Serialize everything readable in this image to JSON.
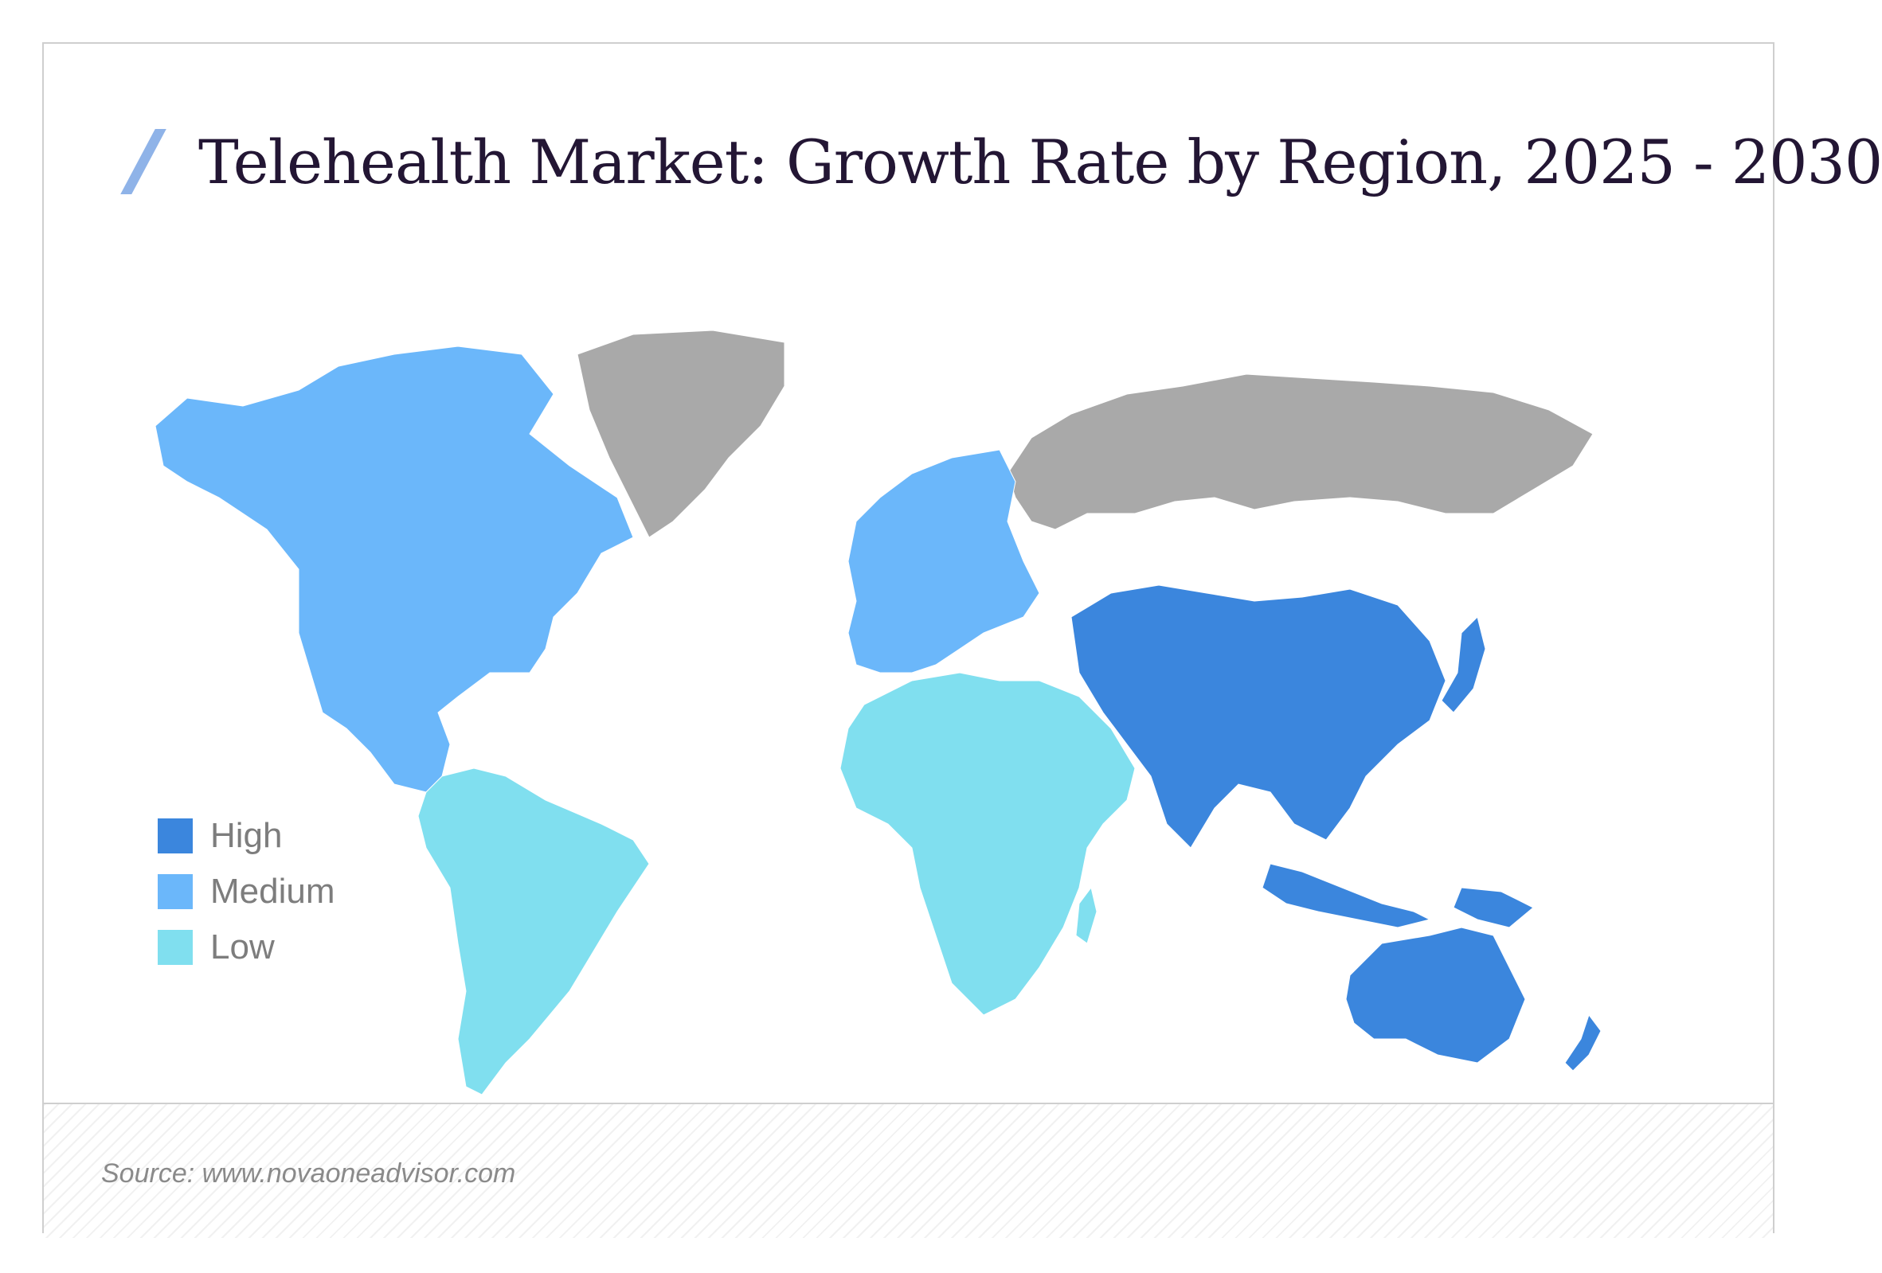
{
  "title": "Telehealth Market: Growth Rate by Region, 2025 - 2030",
  "legend": [
    {
      "label": "High",
      "color": "#3b86dd"
    },
    {
      "label": "Medium",
      "color": "#6bb7fa"
    },
    {
      "label": "Low",
      "color": "#80dfef"
    }
  ],
  "no_data_color": "#a9a9a9",
  "accent_color": "#8fb3e8",
  "regions": [
    {
      "name": "North America",
      "level": "Medium"
    },
    {
      "name": "Europe",
      "level": "Medium"
    },
    {
      "name": "Asia Pacific",
      "level": "High"
    },
    {
      "name": "Latin America",
      "level": "Low"
    },
    {
      "name": "Middle East & Africa",
      "level": "Low"
    }
  ],
  "source": "Source: www.novaoneadvisor.com"
}
